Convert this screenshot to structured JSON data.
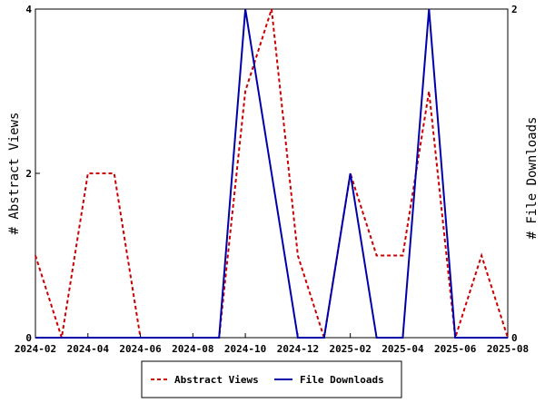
{
  "chart_data": {
    "type": "line",
    "x": [
      "2024-02",
      "2024-03",
      "2024-04",
      "2024-05",
      "2024-06",
      "2024-07",
      "2024-08",
      "2024-09",
      "2024-10",
      "2024-11",
      "2024-12",
      "2025-01",
      "2025-02",
      "2025-03",
      "2025-04",
      "2025-05",
      "2025-06",
      "2025-07",
      "2025-08"
    ],
    "x_tick_labels": [
      "2024-02",
      "2024-04",
      "2024-06",
      "2024-08",
      "2024-10",
      "2024-12",
      "2025-02",
      "2025-04",
      "2025-06",
      "2025-08"
    ],
    "series": [
      {
        "name": "Abstract Views",
        "axis": "left",
        "color": "#cc0000",
        "style": "dashed",
        "values": [
          1,
          0,
          2,
          2,
          0,
          0,
          0,
          0,
          3,
          4,
          1,
          0,
          2,
          1,
          1,
          3,
          0,
          1,
          0
        ]
      },
      {
        "name": "File Downloads",
        "axis": "right",
        "color": "#0000aa",
        "style": "solid",
        "values": [
          0,
          0,
          0,
          0,
          0,
          0,
          0,
          0,
          2,
          1,
          0,
          0,
          1,
          0,
          0,
          2,
          0,
          0,
          0
        ]
      }
    ],
    "ylabel_left": "# Abstract Views",
    "ylabel_right": "# File Downloads",
    "ylim_left": [
      0,
      4
    ],
    "ylim_right": [
      0,
      2
    ],
    "yticks_left": [
      0,
      2,
      4
    ],
    "yticks_right": [
      0,
      2
    ],
    "legend_position": "bottom-center",
    "grid": false
  }
}
